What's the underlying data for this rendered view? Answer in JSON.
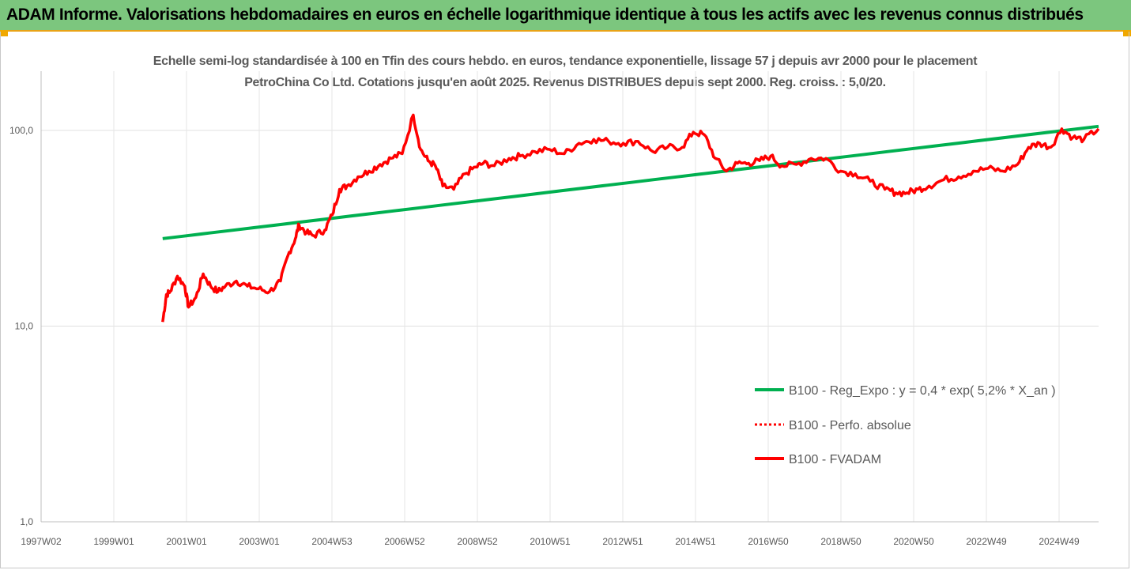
{
  "header": {
    "title": "ADAM Informe. Valorisations hebdomadaires en euros en échelle logarithmique identique à tous les actifs avec les revenus connus distribués"
  },
  "chart_data": {
    "type": "line",
    "title": "Echelle semi-log standardisée à 100 en Tfin des cours hebdo. en euros, tendance exponentielle, lissage 57 j depuis avr 2000 pour le placement PetroChina Co Ltd. Cotations jusqu'en août 2025. Revenus DISTRIBUES depuis sept 2000. Reg. croiss. : 5,0/20.",
    "y_scale": "log",
    "ylim": [
      1,
      200
    ],
    "y_ticks": [
      "1,0",
      "10,0",
      "100,0"
    ],
    "x_ticks": [
      "1997W02",
      "1999W01",
      "2001W01",
      "2003W01",
      "2004W53",
      "2006W52",
      "2008W52",
      "2010W51",
      "2012W51",
      "2014W51",
      "2016W50",
      "2018W50",
      "2020W50",
      "2022W49",
      "2024W49"
    ],
    "xlim": [
      1997.0,
      2025.7
    ],
    "grid": true,
    "legend_position": "right",
    "series": [
      {
        "name": "B100 - Reg_Expo : y = 0,4 * exp( 5,2% *  X_an )",
        "color": "#00b050",
        "style": "solid",
        "x": [
          2000.3,
          2025.7
        ],
        "y": [
          28,
          105
        ]
      },
      {
        "name": "B100 - Perfo. absolue",
        "color": "#ff0000",
        "style": "dotted",
        "x": [],
        "y": []
      },
      {
        "name": "B100 - FVADAM",
        "color": "#ff0000",
        "style": "solid",
        "x": [
          2000.3,
          2000.4,
          2000.5,
          2000.7,
          2000.9,
          2001.0,
          2001.2,
          2001.4,
          2001.6,
          2001.8,
          2002.0,
          2002.3,
          2002.6,
          2002.9,
          2003.2,
          2003.5,
          2003.7,
          2003.9,
          2004.0,
          2004.2,
          2004.4,
          2004.7,
          2004.9,
          2005.1,
          2005.3,
          2005.6,
          2005.9,
          2006.2,
          2006.5,
          2006.8,
          2007.1,
          2007.3,
          2007.5,
          2007.7,
          2007.9,
          2008.2,
          2008.5,
          2008.8,
          2009.0,
          2009.3,
          2009.7,
          2010.0,
          2010.4,
          2010.8,
          2011.2,
          2011.6,
          2012.0,
          2012.4,
          2012.8,
          2013.2,
          2013.6,
          2014.0,
          2014.4,
          2014.7,
          2015.0,
          2015.3,
          2015.6,
          2015.9,
          2016.2,
          2016.5,
          2016.8,
          2017.1,
          2017.5,
          2017.9,
          2018.3,
          2018.7,
          2019.1,
          2019.5,
          2019.9,
          2020.2,
          2020.5,
          2020.8,
          2021.1,
          2021.5,
          2021.9,
          2022.3,
          2022.7,
          2023.1,
          2023.5,
          2023.8,
          2024.1,
          2024.4,
          2024.7,
          2025.0,
          2025.3,
          2025.7
        ],
        "y": [
          10.5,
          14.5,
          15,
          18,
          16,
          12.5,
          14,
          18.5,
          16,
          15,
          16,
          17,
          16,
          15.5,
          15,
          17,
          23,
          28,
          33,
          30,
          29,
          31,
          37,
          50,
          52,
          58,
          62,
          67,
          72,
          76,
          120,
          80,
          70,
          66,
          52,
          50,
          60,
          65,
          68,
          66,
          72,
          74,
          78,
          80,
          76,
          86,
          90,
          88,
          86,
          88,
          78,
          82,
          82,
          98,
          95,
          72,
          62,
          68,
          68,
          70,
          74,
          66,
          67,
          72,
          72,
          62,
          60,
          55,
          50,
          48,
          48,
          50,
          52,
          56,
          58,
          62,
          64,
          62,
          67,
          82,
          86,
          82,
          102,
          92,
          90,
          102
        ]
      }
    ]
  }
}
